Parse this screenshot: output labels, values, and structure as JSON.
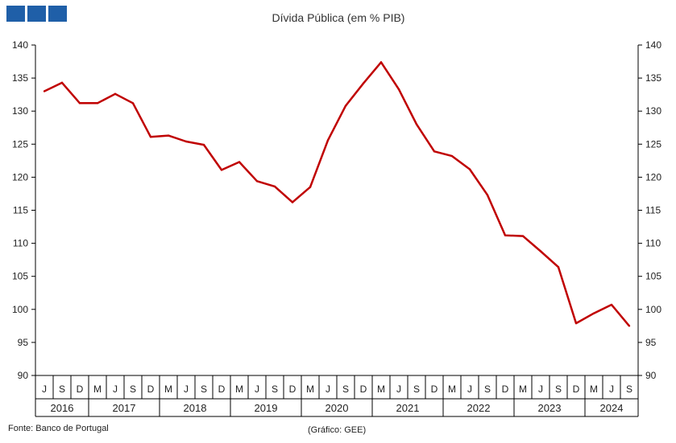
{
  "header": {
    "logo_icon": "gee-logo-icon"
  },
  "chart_data": {
    "type": "line",
    "title": "Dívida Pública (em % PIB)",
    "xlabel": "",
    "ylabel": "",
    "ylim": [
      90,
      140
    ],
    "yticks": [
      90,
      95,
      100,
      105,
      110,
      115,
      120,
      125,
      130,
      135,
      140
    ],
    "grid": false,
    "legend": "none",
    "line_color": "#c00000",
    "quarter_labels": [
      "J",
      "S",
      "D",
      "M",
      "J",
      "S",
      "D",
      "M",
      "J",
      "S",
      "D",
      "M",
      "J",
      "S",
      "D",
      "M",
      "J",
      "S",
      "D",
      "M",
      "J",
      "S",
      "D",
      "M",
      "J",
      "S",
      "D",
      "M",
      "J",
      "S",
      "D",
      "M",
      "J",
      "S"
    ],
    "year_labels": [
      "2016",
      "2017",
      "2018",
      "2019",
      "2020",
      "2021",
      "2022",
      "2023",
      "2024"
    ],
    "series": [
      {
        "values": [
          133.0,
          134.3,
          131.2,
          131.2,
          132.6,
          131.2,
          126.1,
          126.3,
          125.4,
          124.9,
          121.1,
          122.3,
          119.4,
          118.6,
          116.2,
          118.5,
          125.6,
          130.8,
          134.2,
          137.4,
          133.3,
          128.0,
          123.9,
          123.2,
          121.2,
          117.3,
          111.2,
          111.1,
          108.8,
          106.4,
          97.9,
          99.4,
          100.7,
          97.5
        ]
      }
    ],
    "source": "Fonte:  Banco de Portugal",
    "credit": "(Gráfico: GEE)"
  }
}
